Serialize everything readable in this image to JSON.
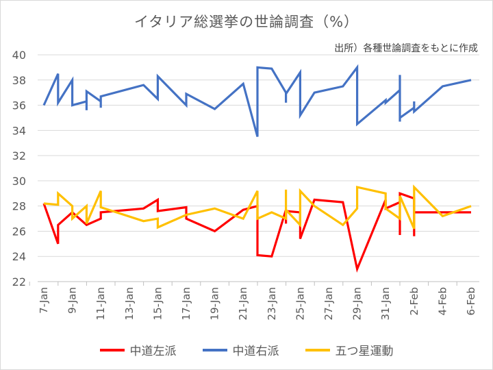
{
  "chart_data": {
    "type": "line",
    "title": "イタリア総選挙の世論調査（%）",
    "annotation": "出所）各種世論調査をもとに作成",
    "xlabel": "",
    "ylabel": "",
    "ylim": [
      22,
      40
    ],
    "yticks": [
      "22",
      "24",
      "26",
      "28",
      "30",
      "32",
      "34",
      "36",
      "38",
      "40"
    ],
    "xlim": [
      "2018-01-07",
      "2018-02-06"
    ],
    "xticks": [
      "7-Jan",
      "9-Jan",
      "11-Jan",
      "13-Jan",
      "15-Jan",
      "17-Jan",
      "19-Jan",
      "21-Jan",
      "23-Jan",
      "25-Jan",
      "27-Jan",
      "29-Jan",
      "31-Jan",
      "2-Feb",
      "4-Feb",
      "6-Feb"
    ],
    "grid": true,
    "legend_position": "bottom",
    "series": [
      {
        "name": "中道左派",
        "color": "#ff0000",
        "points": [
          [
            "2018-01-07",
            28.2
          ],
          [
            "2018-01-08",
            25.0
          ],
          [
            "2018-01-08",
            26.5
          ],
          [
            "2018-01-09",
            27.5
          ],
          [
            "2018-01-10",
            26.5
          ],
          [
            "2018-01-11",
            27.0
          ],
          [
            "2018-01-11",
            27.5
          ],
          [
            "2018-01-14",
            27.8
          ],
          [
            "2018-01-15",
            28.5
          ],
          [
            "2018-01-15",
            27.6
          ],
          [
            "2018-01-17",
            27.9
          ],
          [
            "2018-01-17",
            27.0
          ],
          [
            "2018-01-19",
            26.0
          ],
          [
            "2018-01-21",
            27.7
          ],
          [
            "2018-01-22",
            28.0
          ],
          [
            "2018-01-22",
            24.1
          ],
          [
            "2018-01-23",
            24.0
          ],
          [
            "2018-01-24",
            27.7
          ],
          [
            "2018-01-24",
            26.6
          ],
          [
            "2018-01-24",
            27.6
          ],
          [
            "2018-01-25",
            27.5
          ],
          [
            "2018-01-25",
            25.4
          ],
          [
            "2018-01-26",
            28.5
          ],
          [
            "2018-01-28",
            28.3
          ],
          [
            "2018-01-29",
            23.0
          ],
          [
            "2018-01-31",
            28.5
          ],
          [
            "2018-01-31",
            27.8
          ],
          [
            "2018-02-01",
            28.3
          ],
          [
            "2018-02-01",
            25.7
          ],
          [
            "2018-02-01",
            29.0
          ],
          [
            "2018-02-02",
            28.6
          ],
          [
            "2018-02-02",
            25.6
          ],
          [
            "2018-02-02",
            27.5
          ],
          [
            "2018-02-04",
            27.5
          ],
          [
            "2018-02-06",
            27.5
          ]
        ]
      },
      {
        "name": "中道右派",
        "color": "#4472c4",
        "points": [
          [
            "2018-01-07",
            36.0
          ],
          [
            "2018-01-08",
            38.5
          ],
          [
            "2018-01-08",
            36.2
          ],
          [
            "2018-01-09",
            38.0
          ],
          [
            "2018-01-09",
            36.0
          ],
          [
            "2018-01-10",
            36.3
          ],
          [
            "2018-01-10",
            35.6
          ],
          [
            "2018-01-10",
            37.1
          ],
          [
            "2018-01-11",
            36.3
          ],
          [
            "2018-01-11",
            35.8
          ],
          [
            "2018-01-11",
            36.7
          ],
          [
            "2018-01-14",
            37.6
          ],
          [
            "2018-01-15",
            36.5
          ],
          [
            "2018-01-15",
            38.3
          ],
          [
            "2018-01-17",
            36.0
          ],
          [
            "2018-01-17",
            36.9
          ],
          [
            "2018-01-19",
            35.7
          ],
          [
            "2018-01-21",
            37.7
          ],
          [
            "2018-01-22",
            33.5
          ],
          [
            "2018-01-22",
            39.0
          ],
          [
            "2018-01-23",
            38.9
          ],
          [
            "2018-01-24",
            37.0
          ],
          [
            "2018-01-24",
            36.2
          ],
          [
            "2018-01-24",
            36.9
          ],
          [
            "2018-01-25",
            38.6
          ],
          [
            "2018-01-25",
            35.2
          ],
          [
            "2018-01-26",
            37.0
          ],
          [
            "2018-01-28",
            37.5
          ],
          [
            "2018-01-29",
            39.0
          ],
          [
            "2018-01-29",
            34.5
          ],
          [
            "2018-01-31",
            36.4
          ],
          [
            "2018-01-31",
            36.2
          ],
          [
            "2018-02-01",
            37.2
          ],
          [
            "2018-02-01",
            38.4
          ],
          [
            "2018-02-01",
            34.7
          ],
          [
            "2018-02-01",
            35.0
          ],
          [
            "2018-02-02",
            35.8
          ],
          [
            "2018-02-02",
            36.3
          ],
          [
            "2018-02-02",
            35.5
          ],
          [
            "2018-02-04",
            37.5
          ],
          [
            "2018-02-06",
            38.0
          ]
        ]
      },
      {
        "name": "五つ星運動",
        "color": "#ffc000",
        "points": [
          [
            "2018-01-07",
            28.2
          ],
          [
            "2018-01-08",
            28.1
          ],
          [
            "2018-01-08",
            29.0
          ],
          [
            "2018-01-09",
            28.0
          ],
          [
            "2018-01-09",
            27.0
          ],
          [
            "2018-01-10",
            28.0
          ],
          [
            "2018-01-10",
            26.6
          ],
          [
            "2018-01-11",
            29.2
          ],
          [
            "2018-01-11",
            27.9
          ],
          [
            "2018-01-14",
            26.8
          ],
          [
            "2018-01-15",
            27.0
          ],
          [
            "2018-01-15",
            26.3
          ],
          [
            "2018-01-17",
            27.3
          ],
          [
            "2018-01-19",
            27.8
          ],
          [
            "2018-01-21",
            27.0
          ],
          [
            "2018-01-22",
            29.2
          ],
          [
            "2018-01-22",
            27.0
          ],
          [
            "2018-01-23",
            27.5
          ],
          [
            "2018-01-24",
            27.0
          ],
          [
            "2018-01-24",
            29.3
          ],
          [
            "2018-01-24",
            27.7
          ],
          [
            "2018-01-25",
            26.5
          ],
          [
            "2018-01-25",
            29.2
          ],
          [
            "2018-01-26",
            28.0
          ],
          [
            "2018-01-28",
            26.5
          ],
          [
            "2018-01-29",
            27.8
          ],
          [
            "2018-01-29",
            29.5
          ],
          [
            "2018-01-31",
            29.0
          ],
          [
            "2018-01-31",
            27.8
          ],
          [
            "2018-02-01",
            27.0
          ],
          [
            "2018-02-01",
            28.8
          ],
          [
            "2018-02-02",
            26.2
          ],
          [
            "2018-02-02",
            29.5
          ],
          [
            "2018-02-04",
            27.2
          ],
          [
            "2018-02-06",
            28.0
          ]
        ]
      }
    ]
  }
}
